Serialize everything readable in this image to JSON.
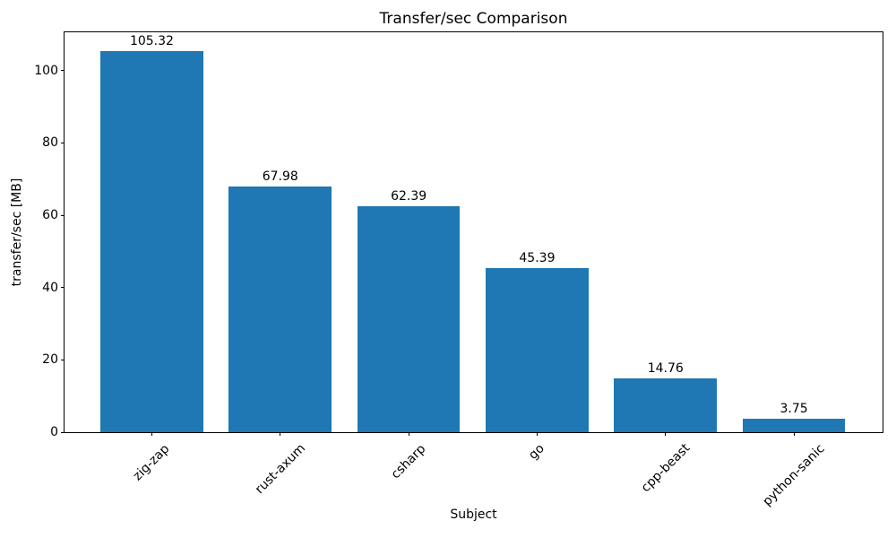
{
  "chart_data": {
    "type": "bar",
    "title": "Transfer/sec Comparison",
    "xlabel": "Subject",
    "ylabel": "transfer/sec [MB]",
    "categories": [
      "zig-zap",
      "rust-axum",
      "csharp",
      "go",
      "cpp-beast",
      "python-sanic"
    ],
    "values": [
      105.32,
      67.98,
      62.39,
      45.39,
      14.76,
      3.75
    ],
    "bar_labels": [
      "105.32",
      "67.98",
      "62.39",
      "45.39",
      "14.76",
      "3.75"
    ],
    "yticks": [
      0,
      20,
      40,
      60,
      80,
      100
    ],
    "ylim": [
      0,
      110.59
    ],
    "grid": false,
    "legend": null,
    "colors": {
      "bar": "#1f77b4",
      "spine": "#000000",
      "text": "#000000",
      "background": "#ffffff"
    }
  }
}
